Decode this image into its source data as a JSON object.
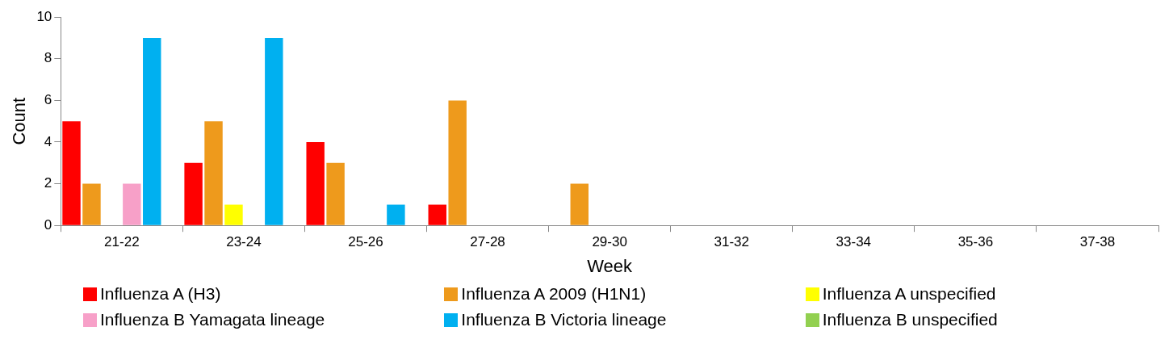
{
  "chart_data": {
    "type": "bar",
    "xlabel": "Week",
    "ylabel": "Count",
    "categories": [
      "21-22",
      "23-24",
      "25-26",
      "27-28",
      "29-30",
      "31-32",
      "33-34",
      "35-36",
      "37-38"
    ],
    "series": [
      {
        "name": "Influenza A (H3)",
        "color": "#ff0000",
        "values": [
          5,
          3,
          4,
          1,
          0,
          0,
          0,
          0,
          0
        ]
      },
      {
        "name": "Influenza A 2009 (H1N1)",
        "color": "#ee9a1c",
        "values": [
          2,
          5,
          3,
          6,
          2,
          0,
          0,
          0,
          0
        ]
      },
      {
        "name": "Influenza A unspecified",
        "color": "#ffff00",
        "values": [
          0,
          1,
          0,
          0,
          0,
          0,
          0,
          0,
          0
        ]
      },
      {
        "name": "Influenza B Yamagata lineage",
        "color": "#f7a0c8",
        "values": [
          2,
          0,
          0,
          0,
          0,
          0,
          0,
          0,
          0
        ]
      },
      {
        "name": "Influenza B Victoria lineage",
        "color": "#00b0f0",
        "values": [
          9,
          9,
          1,
          0,
          0,
          0,
          0,
          0,
          0
        ]
      },
      {
        "name": "Influenza B unspecified",
        "color": "#92d050",
        "values": [
          0,
          0,
          0,
          0,
          0,
          0,
          0,
          0,
          0
        ]
      }
    ],
    "ylim": [
      0,
      10
    ],
    "yticks": [
      0,
      2,
      4,
      6,
      8,
      10
    ],
    "grid": false,
    "legend": "bottom"
  }
}
